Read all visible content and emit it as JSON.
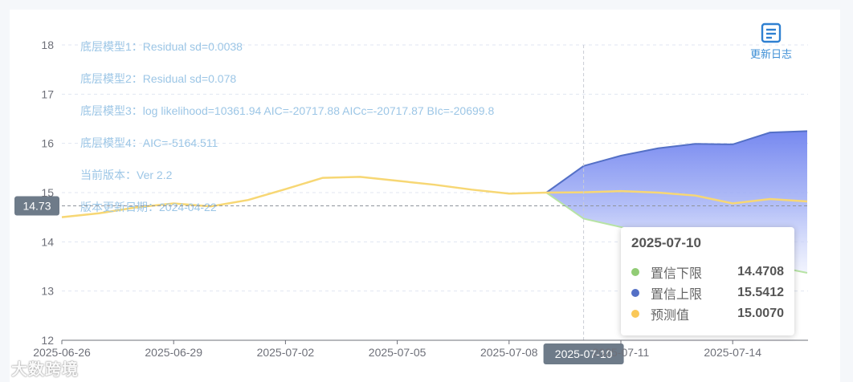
{
  "toolbar": {
    "changelog_label": "更新日志"
  },
  "watermark": "大数跨境",
  "annotations": [
    "底层模型1：Residual sd=0.0038",
    "底层模型2：Residual sd=0.078",
    "底层模型3：log likelihood=10361.94 AIC=-20717.88 AICc=-20717.87 BIc=-20699.8",
    "底层模型4：AIC=-5164.511",
    "当前版本：Ver 2.2",
    "版本更新日期：2024-04-22"
  ],
  "crosshair": {
    "y_value": "14.73",
    "x_value": "2025-07-10"
  },
  "tooltip": {
    "title": "2025-07-10",
    "rows": [
      {
        "name": "置信下限",
        "value": "14.4708",
        "color": "#91cc75"
      },
      {
        "name": "置信上限",
        "value": "15.5412",
        "color": "#5470c6"
      },
      {
        "name": "预测值",
        "value": "15.0070",
        "color": "#fac858"
      }
    ]
  },
  "chart_data": {
    "type": "area",
    "ylim": [
      12,
      18
    ],
    "yticks": [
      "12",
      "13",
      "14",
      "15",
      "16",
      "17",
      "18"
    ],
    "xlabels": [
      "2025-06-26",
      "2025-06-29",
      "2025-07-02",
      "2025-07-05",
      "2025-07-08",
      "2025-07-11",
      "2025-07-14"
    ],
    "x": [
      "2025-06-26",
      "2025-06-27",
      "2025-06-28",
      "2025-06-29",
      "2025-06-30",
      "2025-07-01",
      "2025-07-02",
      "2025-07-03",
      "2025-07-04",
      "2025-07-05",
      "2025-07-06",
      "2025-07-07",
      "2025-07-08",
      "2025-07-09",
      "2025-07-10",
      "2025-07-11",
      "2025-07-12",
      "2025-07-13",
      "2025-07-14",
      "2025-07-15",
      "2025-07-16"
    ],
    "grid": true,
    "series": [
      {
        "name": "预测值",
        "color": "#fac858",
        "values": [
          14.5,
          14.58,
          14.7,
          14.78,
          14.72,
          14.85,
          15.07,
          15.3,
          15.32,
          15.24,
          15.16,
          15.06,
          14.98,
          15.0,
          15.007,
          15.03,
          15.0,
          14.94,
          14.78,
          14.87,
          14.82
        ]
      },
      {
        "name": "置信上限",
        "color": "#5470c6",
        "values": [
          null,
          null,
          null,
          null,
          null,
          null,
          null,
          null,
          null,
          null,
          null,
          null,
          null,
          15.0,
          15.5412,
          15.75,
          15.9,
          15.99,
          15.98,
          16.22,
          16.25
        ]
      },
      {
        "name": "置信下限",
        "color": "#91cc75",
        "values": [
          null,
          null,
          null,
          null,
          null,
          null,
          null,
          null,
          null,
          null,
          null,
          null,
          null,
          15.0,
          14.4708,
          14.3,
          14.13,
          13.93,
          13.6,
          13.52,
          13.37
        ]
      }
    ]
  }
}
